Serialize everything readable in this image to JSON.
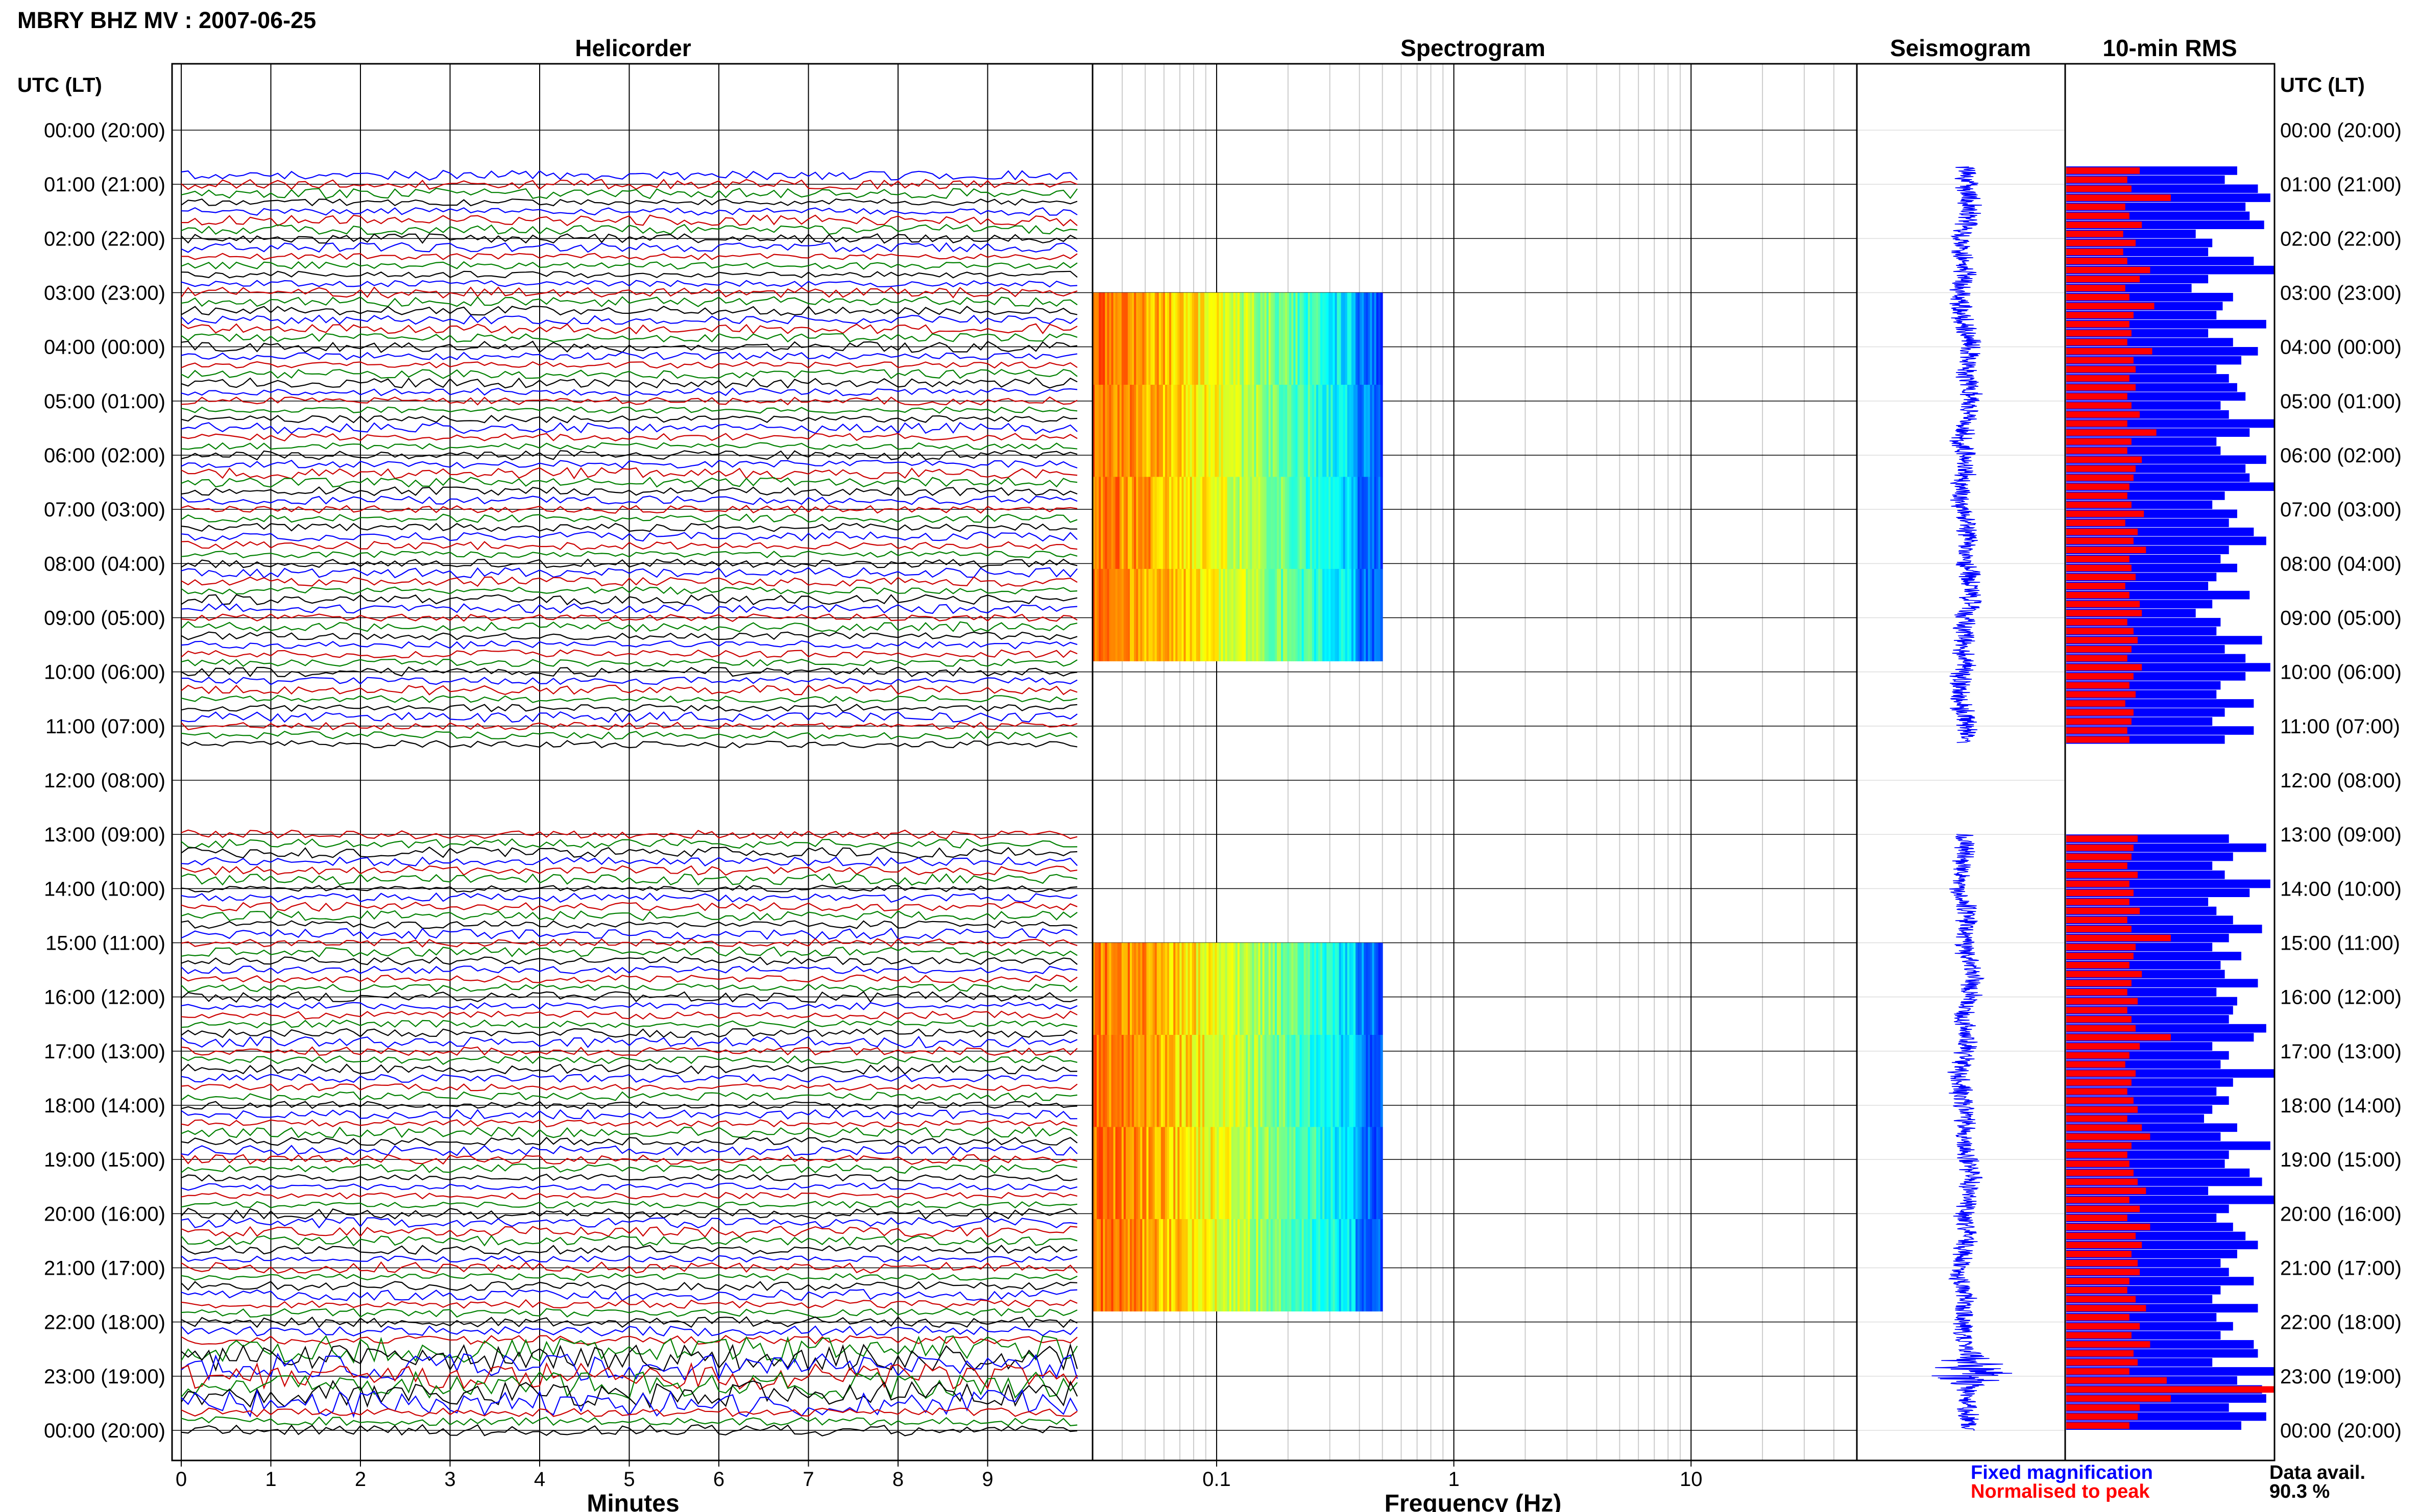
{
  "figure_title": "MBRY BHZ MV : 2007-06-25",
  "utc_header_left": "UTC (LT)",
  "utc_header_right": "UTC (LT)",
  "time_labels": [
    "00:00 (20:00)",
    "01:00 (21:00)",
    "02:00 (22:00)",
    "03:00 (23:00)",
    "04:00 (00:00)",
    "05:00 (01:00)",
    "06:00 (02:00)",
    "07:00 (03:00)",
    "08:00 (04:00)",
    "09:00 (05:00)",
    "10:00 (06:00)",
    "11:00 (07:00)",
    "12:00 (08:00)",
    "13:00 (09:00)",
    "14:00 (10:00)",
    "15:00 (11:00)",
    "16:00 (12:00)",
    "17:00 (13:00)",
    "18:00 (14:00)",
    "19:00 (15:00)",
    "20:00 (16:00)",
    "21:00 (17:00)",
    "22:00 (18:00)",
    "23:00 (19:00)",
    "00:00 (20:00)"
  ],
  "legend": {
    "fixed_label": "Fixed magnification",
    "fixed_color": "#0000ff",
    "normalised_label": "Normalised to peak",
    "normalised_color": "#ff0000"
  },
  "data_avail": {
    "label": "Data avail.",
    "value": "90.3 %"
  },
  "colors": {
    "grid": "#000000",
    "fine_grid": "#cccccc",
    "trace_colors": [
      "#000000",
      "#0000ff",
      "#cc0000",
      "#008000"
    ],
    "seismogram": "#0000ff",
    "rms_fixed": "#0000ff",
    "rms_normalised": "#ff0000"
  },
  "chart_data": [
    {
      "type": "line",
      "title": "Helicorder",
      "xlabel": "Minutes",
      "ylabel": "",
      "x_ticks": [
        "0",
        "1",
        "2",
        "3",
        "4",
        "5",
        "6",
        "7",
        "8",
        "9"
      ],
      "xlim": [
        0,
        10
      ],
      "y_range_hours": [
        0,
        24
      ],
      "traces_per_hour": 6,
      "data_gaps_hours": [
        [
          0,
          0.67
        ],
        [
          11.5,
          13.0
        ]
      ],
      "large_amplitude_hours": [
        22.5,
        23.5
      ],
      "grid": true
    },
    {
      "type": "heatmap",
      "title": "Spectrogram",
      "xlabel": "Frequency (Hz)",
      "ylabel": "",
      "x_scale": "log",
      "xlim": [
        0.03,
        50
      ],
      "x_ticks": [
        "0.1",
        "1",
        "10"
      ],
      "spectral_extent_hz": [
        0.03,
        0.5
      ],
      "colormap": "jet",
      "blocks": [
        {
          "hour_start": 3,
          "hour_end": 4.7
        },
        {
          "hour_start": 4.7,
          "hour_end": 6.4
        },
        {
          "hour_start": 6.4,
          "hour_end": 8.1
        },
        {
          "hour_start": 8.1,
          "hour_end": 9.8
        },
        {
          "hour_start": 15,
          "hour_end": 16.7
        },
        {
          "hour_start": 16.7,
          "hour_end": 18.4
        },
        {
          "hour_start": 18.4,
          "hour_end": 20.1
        },
        {
          "hour_start": 20.1,
          "hour_end": 21.8
        }
      ],
      "grid": true
    },
    {
      "type": "line",
      "title": "Seismogram",
      "xlabel": "",
      "ylabel": "",
      "segments_hours": [
        [
          0.67,
          11.3
        ],
        [
          13.0,
          24.0
        ]
      ],
      "burst_hours": [
        22.6,
        23.2
      ]
    },
    {
      "type": "bar",
      "orientation": "horizontal",
      "title": "10-min RMS",
      "xlabel": "",
      "ylabel": "",
      "bar_interval_minutes": 10,
      "segment_start_hours": [
        0.67,
        13.0
      ],
      "segment_bar_counts": [
        64,
        66
      ],
      "series": [
        {
          "name": "Fixed magnification",
          "segment_values": [
            [
              0.82,
              0.76,
              0.92,
              0.98,
              0.86,
              0.88,
              0.95,
              0.62,
              0.7,
              0.68,
              0.9,
              1.0,
              0.68,
              0.6,
              0.8,
              0.75,
              0.72,
              0.96,
              0.68,
              0.8,
              0.92,
              0.84,
              0.72,
              0.78,
              0.82,
              0.86,
              0.74,
              0.78,
              1.0,
              0.88,
              0.72,
              0.74,
              0.96,
              0.86,
              0.88,
              1.0,
              0.76,
              0.7,
              0.82,
              0.78,
              0.9,
              0.96,
              0.78,
              0.74,
              0.82,
              0.72,
              0.68,
              0.88,
              0.7,
              0.62,
              0.74,
              0.72,
              0.94,
              0.76,
              0.86,
              0.98,
              0.86,
              0.74,
              0.72,
              0.9,
              0.76,
              0.7,
              0.9,
              0.76
            ],
            [
              0.78,
              0.96,
              0.8,
              0.7,
              0.76,
              0.98,
              0.88,
              0.68,
              0.72,
              0.8,
              0.94,
              0.78,
              0.7,
              0.84,
              0.74,
              0.76,
              0.92,
              0.72,
              0.82,
              0.8,
              0.78,
              0.96,
              0.9,
              0.7,
              0.78,
              0.74,
              1.0,
              0.8,
              0.72,
              0.78,
              0.7,
              0.66,
              0.82,
              0.74,
              0.98,
              0.78,
              0.76,
              0.88,
              0.94,
              0.68,
              1.0,
              0.78,
              0.72,
              0.8,
              0.86,
              0.92,
              0.82,
              0.74,
              0.78,
              0.9,
              0.74,
              0.7,
              0.92,
              0.72,
              0.8,
              0.74,
              0.9,
              0.92,
              0.7,
              1.0,
              0.82,
              0.94,
              0.96,
              0.78,
              0.96,
              0.84
            ]
          ]
        },
        {
          "name": "Normalised to peak",
          "segment_values": [
            [
              0.35,
              0.29,
              0.31,
              0.5,
              0.28,
              0.3,
              0.36,
              0.27,
              0.33,
              0.27,
              0.29,
              0.4,
              0.35,
              0.28,
              0.3,
              0.42,
              0.32,
              0.3,
              0.31,
              0.29,
              0.41,
              0.32,
              0.33,
              0.3,
              0.33,
              0.29,
              0.31,
              0.35,
              0.29,
              0.43,
              0.31,
              0.29,
              0.36,
              0.33,
              0.32,
              0.3,
              0.29,
              0.31,
              0.37,
              0.28,
              0.34,
              0.32,
              0.38,
              0.3,
              0.31,
              0.33,
              0.28,
              0.3,
              0.35,
              0.36,
              0.29,
              0.32,
              0.34,
              0.31,
              0.29,
              0.36,
              0.32,
              0.3,
              0.33,
              0.28,
              0.32,
              0.31,
              0.29,
              0.3
            ],
            [
              0.34,
              0.32,
              0.31,
              0.29,
              0.34,
              0.3,
              0.32,
              0.3,
              0.35,
              0.29,
              0.31,
              0.5,
              0.33,
              0.32,
              0.3,
              0.36,
              0.31,
              0.29,
              0.34,
              0.29,
              0.31,
              0.33,
              0.5,
              0.35,
              0.3,
              0.28,
              0.33,
              0.31,
              0.29,
              0.32,
              0.34,
              0.29,
              0.36,
              0.4,
              0.31,
              0.29,
              0.3,
              0.32,
              0.34,
              0.38,
              0.3,
              0.35,
              0.29,
              0.4,
              0.33,
              0.36,
              0.31,
              0.34,
              0.35,
              0.3,
              0.29,
              0.33,
              0.38,
              0.3,
              0.35,
              0.31,
              0.4,
              0.32,
              0.34,
              0.3,
              0.48,
              1.0,
              0.5,
              0.35,
              0.34,
              0.3
            ]
          ]
        }
      ],
      "xlim": [
        0,
        1
      ]
    }
  ]
}
